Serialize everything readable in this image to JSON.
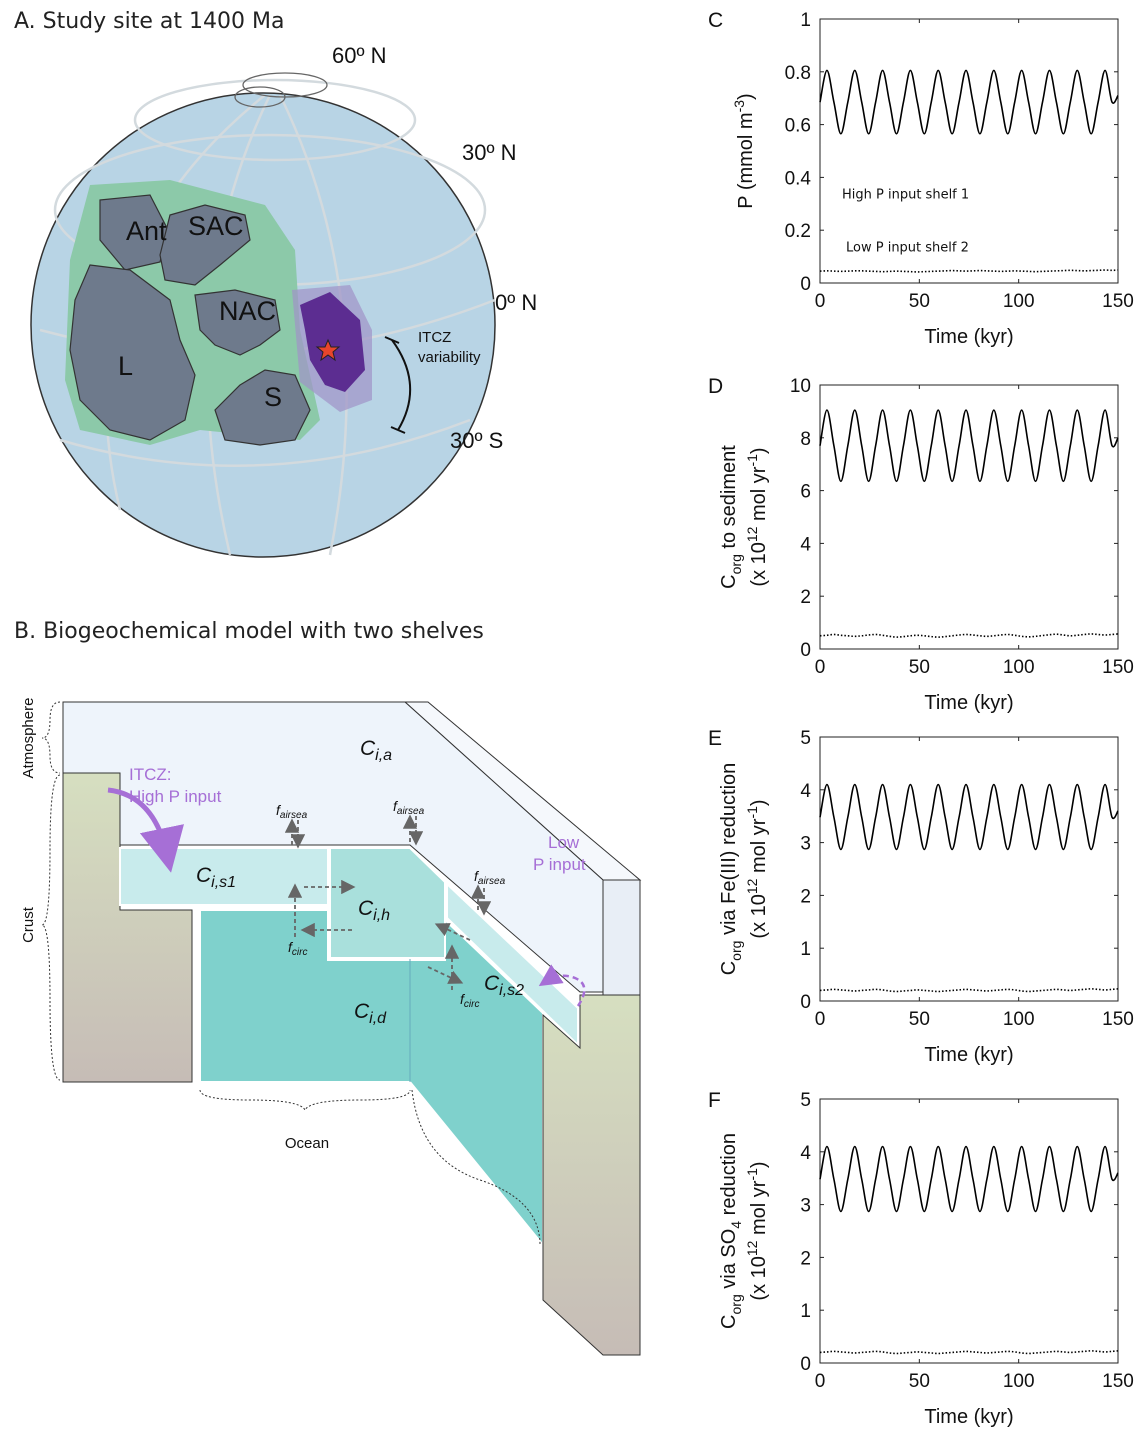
{
  "panel_a": {
    "title": "A. Study site at 1400 Ma",
    "latitudes": [
      "60º N",
      "30º N",
      "0º N",
      "30º S"
    ],
    "continents": [
      "Ant",
      "SAC",
      "NAC",
      "L",
      "S"
    ],
    "itcz_label": [
      "ITCZ",
      "variability"
    ]
  },
  "panel_b": {
    "title": "B. Biogeochemical model with two shelves",
    "layers": [
      "Atmosphere",
      "Crust",
      "Ocean"
    ],
    "reservoirs": [
      {
        "base": "C",
        "sub": "i,a"
      },
      {
        "base": "C",
        "sub": "i,s1"
      },
      {
        "base": "C",
        "sub": "i,h"
      },
      {
        "base": "C",
        "sub": "i,s2"
      },
      {
        "base": "C",
        "sub": "i,d"
      }
    ],
    "fluxes": [
      {
        "base": "f",
        "sub": "airsea"
      },
      {
        "base": "f",
        "sub": "airsea"
      },
      {
        "base": "f",
        "sub": "airsea"
      },
      {
        "base": "f",
        "sub": "circ"
      },
      {
        "base": "f",
        "sub": "circ"
      }
    ],
    "high_input": [
      "ITCZ:",
      "High P input"
    ],
    "low_input": [
      "Low",
      "P input"
    ]
  },
  "chart_data": [
    {
      "type": "line",
      "panel": "C",
      "ylabel": [
        [
          {
            "text": "P (mmol m"
          },
          {
            "text": "-3",
            "sup": true
          },
          {
            "text": ")"
          }
        ]
      ],
      "xlabel": "Time (kyr)",
      "x": [
        0,
        3.5,
        7,
        10.5,
        14,
        17.5,
        21,
        24.5,
        28,
        31.5,
        35,
        38.5,
        42,
        45.5,
        49,
        52.5,
        56,
        59.5,
        63,
        66.5,
        70,
        73.5,
        77,
        80.5,
        84,
        87.5,
        91,
        94.5,
        98,
        101.5,
        105,
        108.5,
        112,
        115.5,
        119,
        122.5,
        126,
        129.5,
        133,
        136.5,
        140,
        143.5,
        147,
        150
      ],
      "xlim": [
        0,
        150
      ],
      "xticks": [
        0,
        50,
        100,
        150
      ],
      "ylim": [
        0,
        1
      ],
      "yticks": [
        0,
        0.2,
        0.4,
        0.6,
        0.8,
        1
      ],
      "series": [
        {
          "name": "High P input shelf 1",
          "color": "#000000",
          "dash": "solid",
          "values": [
            0.685,
            0.805,
            0.685,
            0.565,
            0.685,
            0.805,
            0.685,
            0.565,
            0.685,
            0.805,
            0.685,
            0.565,
            0.685,
            0.805,
            0.685,
            0.565,
            0.685,
            0.805,
            0.685,
            0.565,
            0.685,
            0.805,
            0.685,
            0.565,
            0.685,
            0.805,
            0.685,
            0.565,
            0.685,
            0.805,
            0.685,
            0.565,
            0.685,
            0.805,
            0.685,
            0.565,
            0.685,
            0.805,
            0.685,
            0.565,
            0.685,
            0.805,
            0.685,
            0.71
          ]
        },
        {
          "name": "Low P input shelf 2",
          "color": "#000000",
          "dash": "dotted",
          "values": [
            0.045,
            0.046,
            0.045,
            0.044,
            0.045,
            0.046,
            0.046,
            0.045,
            0.044,
            0.043,
            0.044,
            0.045,
            0.044,
            0.043,
            0.042,
            0.043,
            0.044,
            0.045,
            0.046,
            0.047,
            0.046,
            0.045,
            0.046,
            0.047,
            0.046,
            0.045,
            0.044,
            0.045,
            0.046,
            0.045,
            0.044,
            0.043,
            0.044,
            0.045,
            0.046,
            0.047,
            0.048,
            0.047,
            0.046,
            0.047,
            0.048,
            0.049,
            0.048,
            0.049
          ]
        }
      ]
    },
    {
      "type": "line",
      "panel": "D",
      "ylabel": [
        [
          {
            "text": "C"
          },
          {
            "text": "org",
            "sub": true
          },
          {
            "text": " to sediment"
          }
        ],
        [
          {
            "text": "(x 10"
          },
          {
            "text": "12",
            "sup": true
          },
          {
            "text": " mol yr"
          },
          {
            "text": "-1",
            "sup": true
          },
          {
            "text": ")"
          }
        ]
      ],
      "xlabel": "Time (kyr)",
      "x": [
        0,
        3.5,
        7,
        10.5,
        14,
        17.5,
        21,
        24.5,
        28,
        31.5,
        35,
        38.5,
        42,
        45.5,
        49,
        52.5,
        56,
        59.5,
        63,
        66.5,
        70,
        73.5,
        77,
        80.5,
        84,
        87.5,
        91,
        94.5,
        98,
        101.5,
        105,
        108.5,
        112,
        115.5,
        119,
        122.5,
        126,
        129.5,
        133,
        136.5,
        140,
        143.5,
        147,
        150
      ],
      "xlim": [
        0,
        150
      ],
      "xticks": [
        0,
        50,
        100,
        150
      ],
      "ylim": [
        0,
        10
      ],
      "yticks": [
        0,
        2,
        4,
        6,
        8,
        10
      ],
      "series": [
        {
          "color": "#000000",
          "dash": "solid",
          "values": [
            7.7,
            9.05,
            7.7,
            6.35,
            7.7,
            9.05,
            7.7,
            6.35,
            7.7,
            9.05,
            7.7,
            6.35,
            7.7,
            9.05,
            7.7,
            6.35,
            7.7,
            9.05,
            7.7,
            6.35,
            7.7,
            9.05,
            7.7,
            6.35,
            7.7,
            9.05,
            7.7,
            6.35,
            7.7,
            9.05,
            7.7,
            6.35,
            7.7,
            9.05,
            7.7,
            6.35,
            7.7,
            9.05,
            7.7,
            6.35,
            7.7,
            9.05,
            7.7,
            8.0
          ]
        },
        {
          "color": "#000000",
          "dash": "dotted",
          "values": [
            0.5,
            0.52,
            0.55,
            0.52,
            0.5,
            0.48,
            0.5,
            0.53,
            0.55,
            0.52,
            0.48,
            0.45,
            0.47,
            0.5,
            0.52,
            0.5,
            0.47,
            0.45,
            0.47,
            0.5,
            0.53,
            0.55,
            0.53,
            0.5,
            0.48,
            0.5,
            0.53,
            0.55,
            0.52,
            0.48,
            0.46,
            0.48,
            0.51,
            0.54,
            0.56,
            0.53,
            0.5,
            0.52,
            0.55,
            0.57,
            0.55,
            0.53,
            0.55,
            0.57
          ]
        }
      ]
    },
    {
      "type": "line",
      "panel": "E",
      "ylabel": [
        [
          {
            "text": "C"
          },
          {
            "text": "org",
            "sub": true
          },
          {
            "text": " via Fe(III) reduction"
          }
        ],
        [
          {
            "text": "(x 10"
          },
          {
            "text": "12",
            "sup": true
          },
          {
            "text": " mol yr"
          },
          {
            "text": "-1",
            "sup": true
          },
          {
            "text": ")"
          }
        ]
      ],
      "xlabel": "Time (kyr)",
      "x": [
        0,
        3.5,
        7,
        10.5,
        14,
        17.5,
        21,
        24.5,
        28,
        31.5,
        35,
        38.5,
        42,
        45.5,
        49,
        52.5,
        56,
        59.5,
        63,
        66.5,
        70,
        73.5,
        77,
        80.5,
        84,
        87.5,
        91,
        94.5,
        98,
        101.5,
        105,
        108.5,
        112,
        115.5,
        119,
        122.5,
        126,
        129.5,
        133,
        136.5,
        140,
        143.5,
        147,
        150
      ],
      "xlim": [
        0,
        150
      ],
      "xticks": [
        0,
        50,
        100,
        150
      ],
      "ylim": [
        0,
        5
      ],
      "yticks": [
        0,
        1,
        2,
        3,
        4,
        5
      ],
      "series": [
        {
          "color": "#000000",
          "dash": "solid",
          "values": [
            3.48,
            4.1,
            3.48,
            2.87,
            3.48,
            4.1,
            3.48,
            2.87,
            3.48,
            4.1,
            3.48,
            2.87,
            3.48,
            4.1,
            3.48,
            2.87,
            3.48,
            4.1,
            3.48,
            2.87,
            3.48,
            4.1,
            3.48,
            2.87,
            3.48,
            4.1,
            3.48,
            2.87,
            3.48,
            4.1,
            3.48,
            2.87,
            3.48,
            4.1,
            3.48,
            2.87,
            3.48,
            4.1,
            3.48,
            2.87,
            3.48,
            4.1,
            3.48,
            3.6
          ]
        },
        {
          "color": "#000000",
          "dash": "dotted",
          "values": [
            0.2,
            0.21,
            0.22,
            0.21,
            0.2,
            0.19,
            0.2,
            0.21,
            0.22,
            0.21,
            0.19,
            0.18,
            0.19,
            0.2,
            0.21,
            0.2,
            0.19,
            0.18,
            0.19,
            0.2,
            0.21,
            0.22,
            0.21,
            0.2,
            0.19,
            0.2,
            0.21,
            0.22,
            0.21,
            0.19,
            0.18,
            0.19,
            0.2,
            0.21,
            0.22,
            0.21,
            0.2,
            0.21,
            0.22,
            0.23,
            0.22,
            0.21,
            0.22,
            0.23
          ]
        }
      ]
    },
    {
      "type": "line",
      "panel": "F",
      "ylabel": [
        [
          {
            "text": "C"
          },
          {
            "text": "org",
            "sub": true
          },
          {
            "text": " via SO"
          },
          {
            "text": "4",
            "sub": true
          },
          {
            "text": " reduction"
          }
        ],
        [
          {
            "text": "(x 10"
          },
          {
            "text": "12",
            "sup": true
          },
          {
            "text": " mol yr"
          },
          {
            "text": "-1",
            "sup": true
          },
          {
            "text": ")"
          }
        ]
      ],
      "xlabel": "Time (kyr)",
      "x": [
        0,
        3.5,
        7,
        10.5,
        14,
        17.5,
        21,
        24.5,
        28,
        31.5,
        35,
        38.5,
        42,
        45.5,
        49,
        52.5,
        56,
        59.5,
        63,
        66.5,
        70,
        73.5,
        77,
        80.5,
        84,
        87.5,
        91,
        94.5,
        98,
        101.5,
        105,
        108.5,
        112,
        115.5,
        119,
        122.5,
        126,
        129.5,
        133,
        136.5,
        140,
        143.5,
        147,
        150
      ],
      "xlim": [
        0,
        150
      ],
      "xticks": [
        0,
        50,
        100,
        150
      ],
      "ylim": [
        0,
        5
      ],
      "yticks": [
        0,
        1,
        2,
        3,
        4,
        5
      ],
      "series": [
        {
          "color": "#000000",
          "dash": "solid",
          "values": [
            3.48,
            4.1,
            3.48,
            2.87,
            3.48,
            4.1,
            3.48,
            2.87,
            3.48,
            4.1,
            3.48,
            2.87,
            3.48,
            4.1,
            3.48,
            2.87,
            3.48,
            4.1,
            3.48,
            2.87,
            3.48,
            4.1,
            3.48,
            2.87,
            3.48,
            4.1,
            3.48,
            2.87,
            3.48,
            4.1,
            3.48,
            2.87,
            3.48,
            4.1,
            3.48,
            2.87,
            3.48,
            4.1,
            3.48,
            2.87,
            3.48,
            4.1,
            3.48,
            3.6
          ]
        },
        {
          "color": "#000000",
          "dash": "dotted",
          "values": [
            0.2,
            0.21,
            0.22,
            0.21,
            0.2,
            0.19,
            0.2,
            0.21,
            0.22,
            0.21,
            0.19,
            0.18,
            0.19,
            0.2,
            0.21,
            0.2,
            0.19,
            0.18,
            0.19,
            0.2,
            0.21,
            0.22,
            0.21,
            0.2,
            0.19,
            0.2,
            0.21,
            0.22,
            0.21,
            0.19,
            0.18,
            0.19,
            0.2,
            0.21,
            0.22,
            0.21,
            0.2,
            0.21,
            0.22,
            0.23,
            0.22,
            0.21,
            0.22,
            0.23
          ]
        }
      ]
    }
  ]
}
